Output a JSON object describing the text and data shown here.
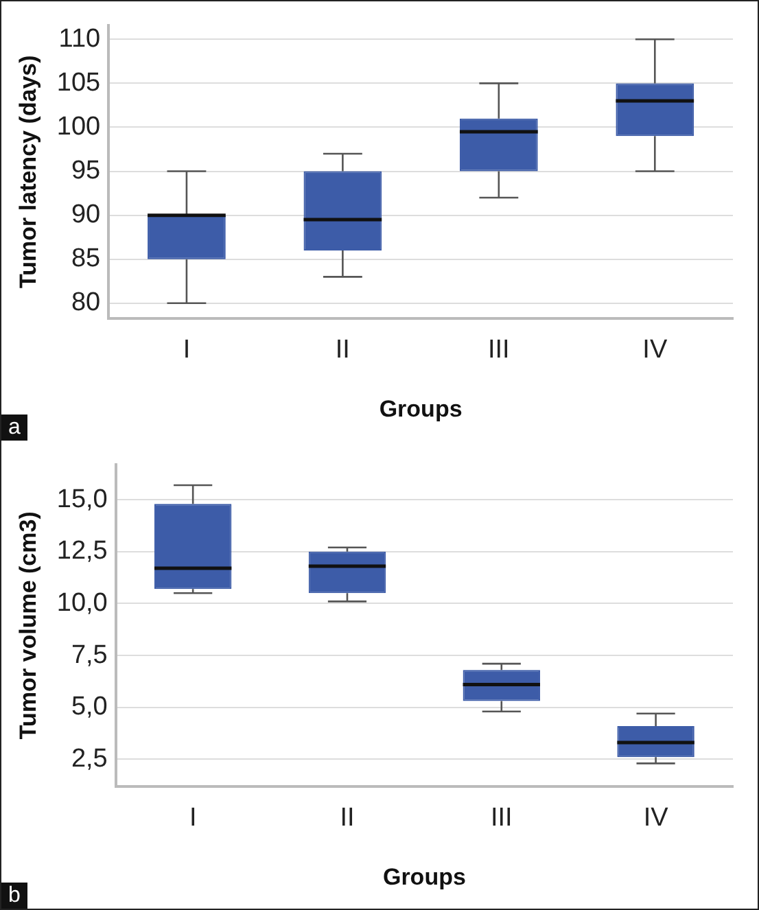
{
  "chart_data": [
    {
      "type": "box",
      "xlabel": "Groups",
      "ylabel": "Tumor latency (days)",
      "categories": [
        "I",
        "II",
        "III",
        "IV"
      ],
      "color": "#3d5ca8",
      "boxes": [
        {
          "low": 80,
          "q1": 85,
          "median": 90,
          "q3": 90,
          "high": 95
        },
        {
          "low": 83,
          "q1": 86,
          "median": 89.5,
          "q3": 95,
          "high": 97
        },
        {
          "low": 92,
          "q1": 95,
          "median": 99.5,
          "q3": 101,
          "high": 105
        },
        {
          "low": 95,
          "q1": 99,
          "median": 103,
          "q3": 105,
          "high": 110
        }
      ],
      "ylim": [
        78.3,
        111.6
      ],
      "yticks": [
        80,
        85,
        90,
        95,
        100,
        105,
        110
      ],
      "grid": "y",
      "annotations": [
        "a"
      ]
    },
    {
      "type": "box",
      "xlabel": "Groups",
      "ylabel": "Tumor volume (cm3)",
      "categories": [
        "I",
        "II",
        "III",
        "IV"
      ],
      "color": "#3d5ca8",
      "boxes": [
        {
          "low": 10.5,
          "q1": 10.7,
          "median": 11.7,
          "q3": 14.8,
          "high": 15.7
        },
        {
          "low": 10.1,
          "q1": 10.5,
          "median": 11.8,
          "q3": 12.5,
          "high": 12.7
        },
        {
          "low": 4.8,
          "q1": 5.3,
          "median": 6.1,
          "q3": 6.8,
          "high": 7.1
        },
        {
          "low": 2.3,
          "q1": 2.6,
          "median": 3.3,
          "q3": 4.1,
          "high": 4.7
        }
      ],
      "ylim": [
        1.2,
        16.7
      ],
      "yticks": [
        {
          "value": 2.5,
          "label": "2,5"
        },
        {
          "value": 5,
          "label": "5,0"
        },
        {
          "value": 7.5,
          "label": "7,5"
        },
        {
          "value": 10,
          "label": "10,0"
        },
        {
          "value": 12.5,
          "label": "12,5"
        },
        {
          "value": 15,
          "label": "15,0"
        }
      ],
      "grid": "y",
      "annotations": [
        "b"
      ]
    }
  ]
}
